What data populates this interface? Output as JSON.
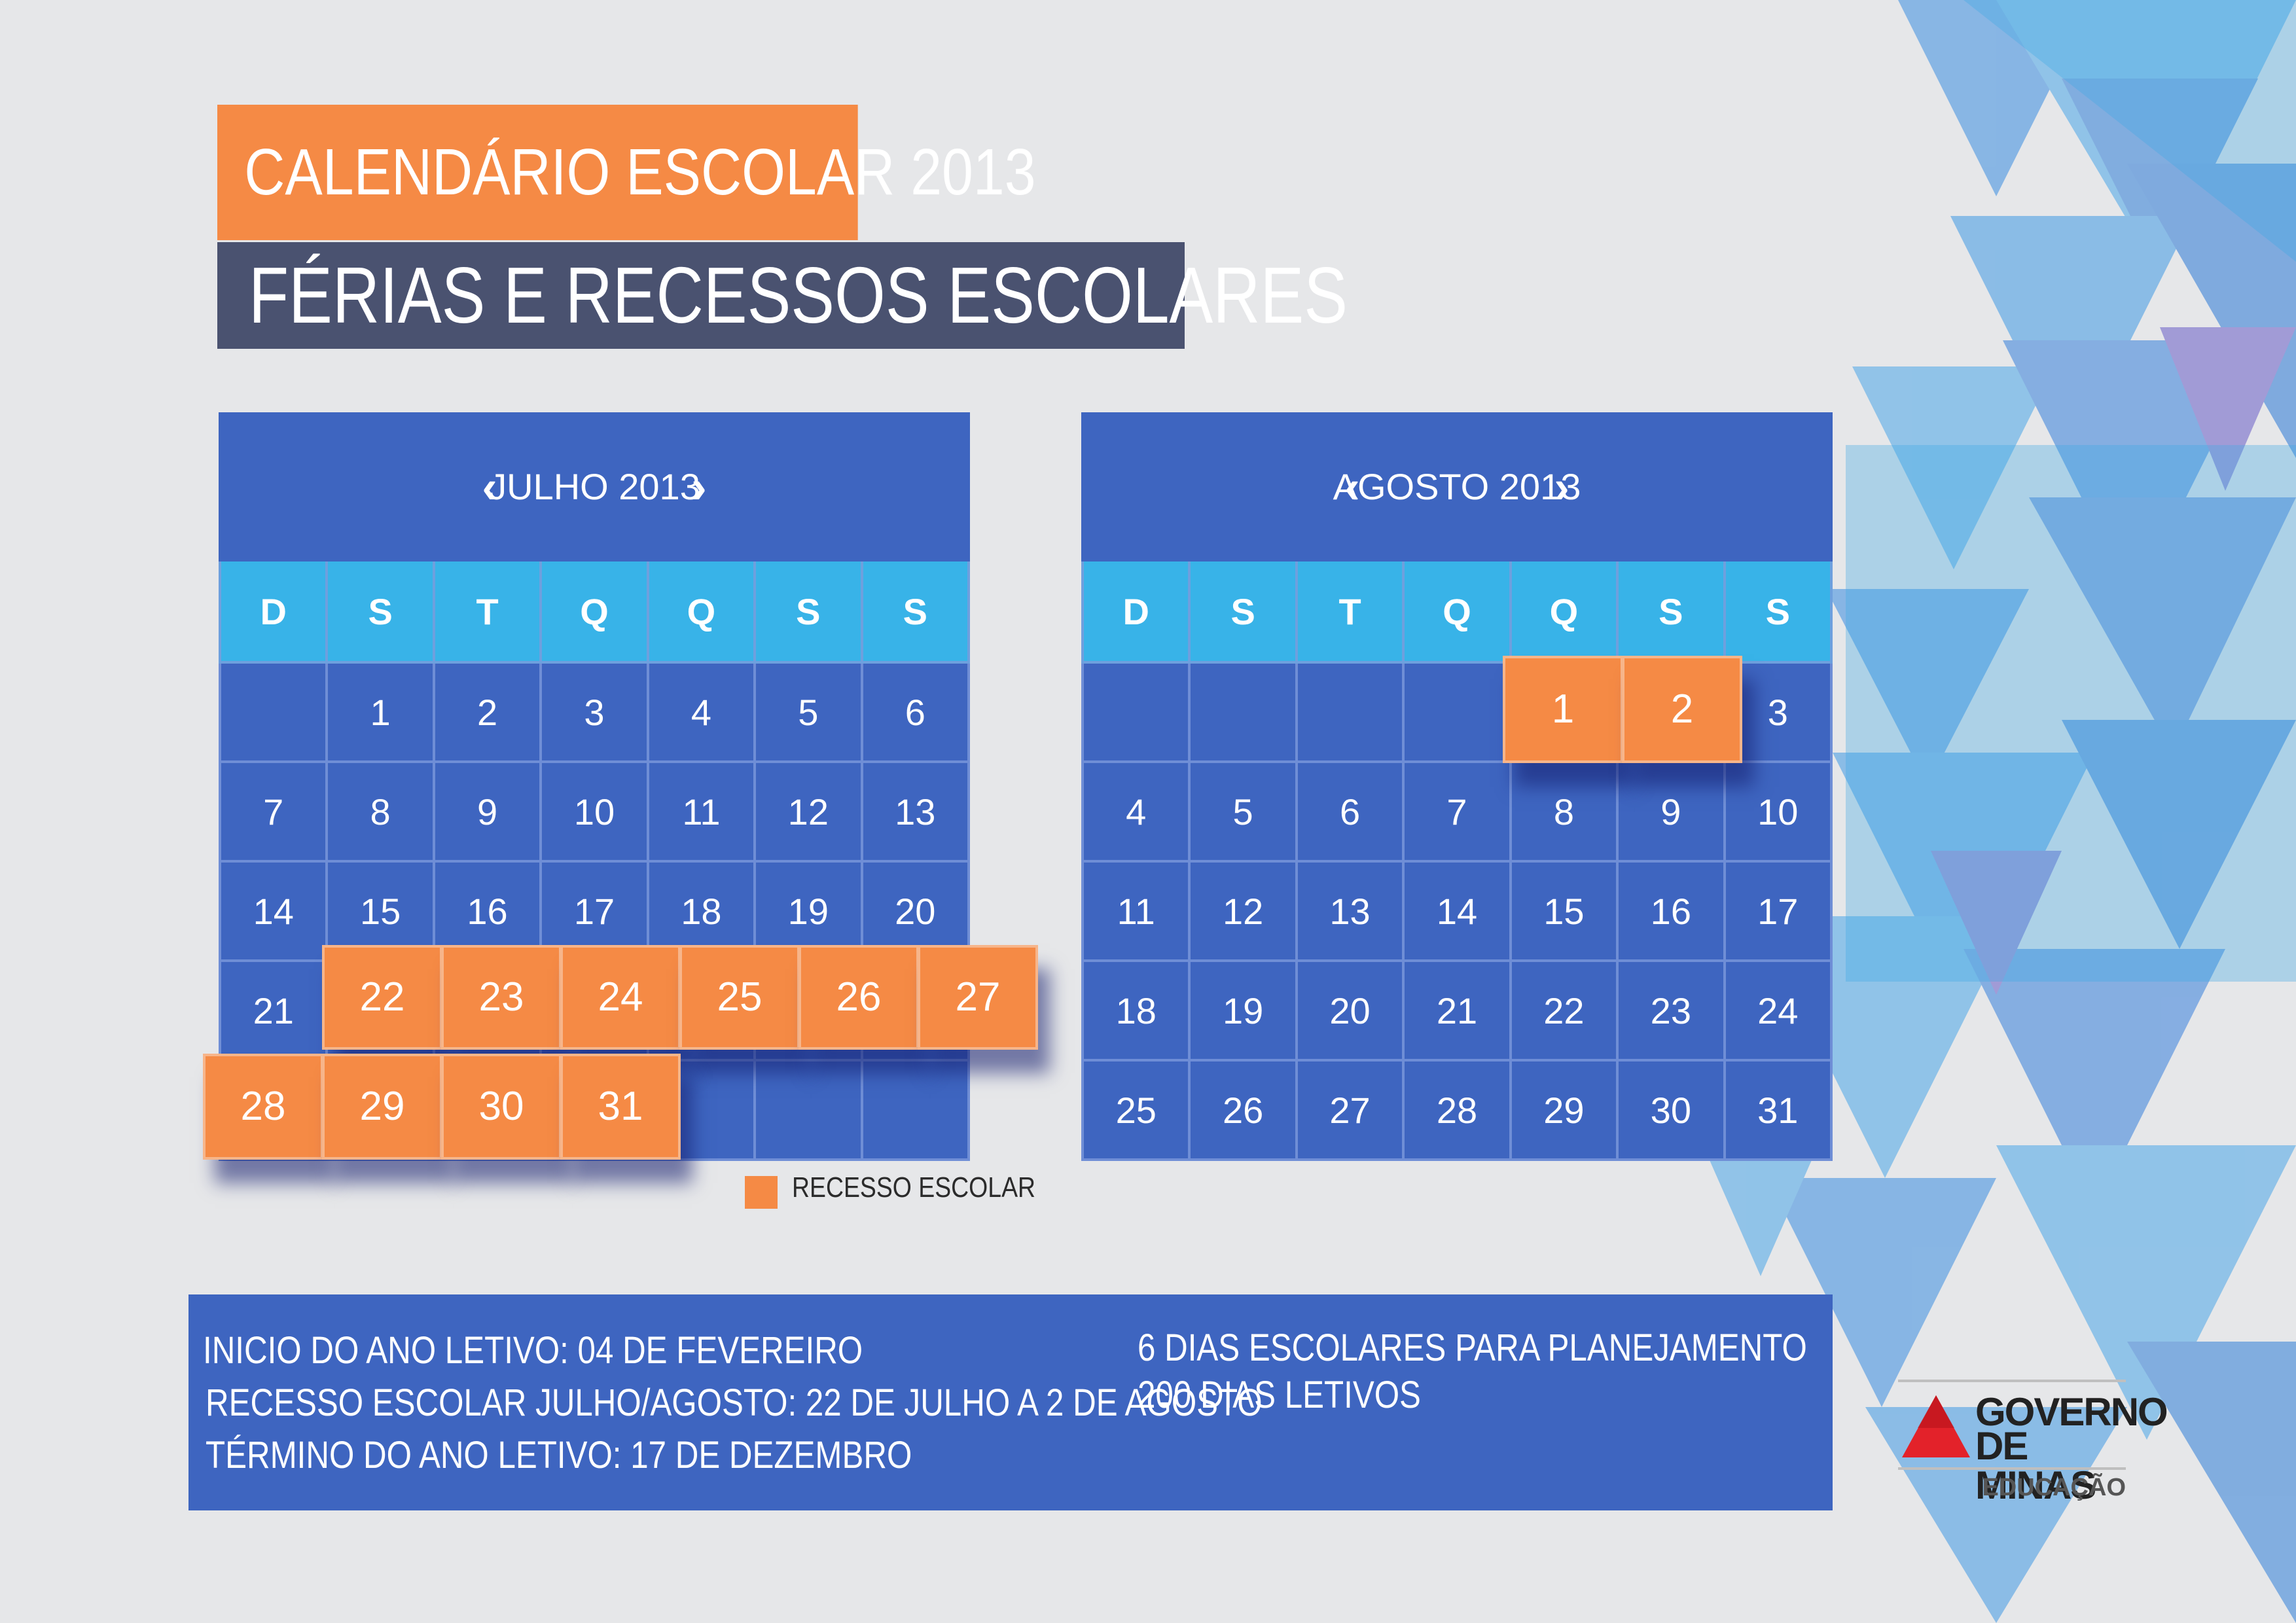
{
  "header": {
    "title": "CALENDÁRIO ESCOLAR 2013",
    "subtitle": "FÉRIAS E RECESSOS ESCOLARES"
  },
  "colors": {
    "orange": "#f58a45",
    "dark_slate": "#4a5270",
    "calendar_blue": "#3e65c0",
    "weekday_cyan": "#38b3e8",
    "background": "#e6e7e9"
  },
  "calendars": [
    {
      "month": "JULHO 2013",
      "weekdays": [
        "D",
        "S",
        "T",
        "Q",
        "Q",
        "S",
        "S"
      ],
      "weeks": [
        [
          "",
          "1",
          "2",
          "3",
          "4",
          "5",
          "6"
        ],
        [
          "7",
          "8",
          "9",
          "10",
          "11",
          "12",
          "13"
        ],
        [
          "14",
          "15",
          "16",
          "17",
          "18",
          "19",
          "20"
        ],
        [
          "21",
          "22",
          "23",
          "24",
          "25",
          "26",
          "27"
        ],
        [
          "28",
          "29",
          "30",
          "31",
          "",
          "",
          ""
        ]
      ],
      "recess_days": [
        "22",
        "23",
        "24",
        "25",
        "26",
        "27",
        "28",
        "29",
        "30",
        "31"
      ]
    },
    {
      "month": "AGOSTO 2013",
      "weekdays": [
        "D",
        "S",
        "T",
        "Q",
        "Q",
        "S",
        "S"
      ],
      "weeks": [
        [
          "",
          "",
          "",
          "",
          "1",
          "2",
          "3"
        ],
        [
          "4",
          "5",
          "6",
          "7",
          "8",
          "9",
          "10"
        ],
        [
          "11",
          "12",
          "13",
          "14",
          "15",
          "16",
          "17"
        ],
        [
          "18",
          "19",
          "20",
          "21",
          "22",
          "23",
          "24"
        ],
        [
          "25",
          "26",
          "27",
          "28",
          "29",
          "30",
          "31"
        ]
      ],
      "recess_days": [
        "1",
        "2"
      ]
    }
  ],
  "nav": {
    "prev_icon": "chevron-left-icon",
    "next_icon": "chevron-right-icon",
    "prev_glyph": "‹",
    "next_glyph": "›"
  },
  "legend": {
    "label": "RECESSO ESCOLAR"
  },
  "info": {
    "left": [
      "INICIO DO ANO LETIVO: 04 DE FEVEREIRO",
      "RECESSO ESCOLAR JULHO/AGOSTO: 22 DE JULHO A 2 DE AGOSTO",
      "TÉRMINO DO ANO LETIVO: 17 DE DEZEMBRO"
    ],
    "right": [
      "6 DIAS ESCOLARES PARA PLANEJAMENTO",
      "200 DIAS LETIVOS"
    ]
  },
  "logo": {
    "line1": "GOVERNO",
    "line2": "DE MINAS",
    "line3": "EDUCAÇÃO"
  }
}
